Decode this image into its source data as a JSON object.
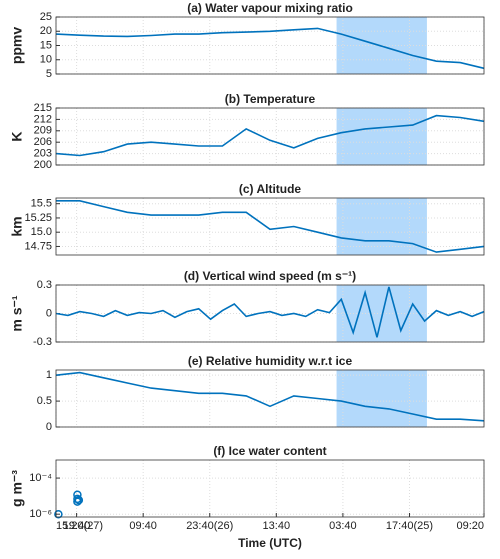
{
  "chart_data": [
    {
      "type": "line",
      "title": "(a) Water vapour mixing ratio",
      "ylabel": "ppmv",
      "color": "#0072bd",
      "grid": true,
      "ylim": [
        5,
        25
      ],
      "yticks": [
        5,
        10,
        15,
        20,
        25
      ],
      "highlight": {
        "x": [
          59,
          78
        ],
        "color": "#b3d9fb"
      },
      "x": [
        0,
        5,
        10,
        15,
        20,
        25,
        30,
        35,
        40,
        45,
        50,
        55,
        60,
        65,
        70,
        75,
        80,
        85,
        90
      ],
      "values": [
        19,
        18.6,
        18.3,
        18.2,
        18.5,
        19,
        19,
        19.5,
        19.7,
        20,
        20.5,
        21,
        19,
        16.5,
        14,
        11.5,
        9.5,
        9,
        7
      ]
    },
    {
      "type": "line",
      "title": "(b) Temperature",
      "ylabel": "K",
      "color": "#0072bd",
      "grid": true,
      "ylim": [
        200,
        215
      ],
      "yticks": [
        200,
        203,
        206,
        209,
        212,
        215
      ],
      "highlight": {
        "x": [
          59,
          78
        ],
        "color": "#b3d9fb"
      },
      "x": [
        0,
        5,
        10,
        15,
        20,
        25,
        30,
        35,
        40,
        45,
        50,
        55,
        60,
        65,
        70,
        75,
        80,
        85,
        90
      ],
      "values": [
        203,
        202.5,
        203.5,
        205.5,
        206,
        205.5,
        205,
        205,
        209.5,
        206.5,
        204.5,
        207,
        208.5,
        209.5,
        210,
        210.5,
        213,
        212.5,
        211.5
      ]
    },
    {
      "type": "line",
      "title": "(c) Altitude",
      "ylabel": "km",
      "color": "#0072bd",
      "grid": true,
      "ylim": [
        14.6,
        15.6
      ],
      "yticks": [
        14.75,
        {
          "value": 15,
          "label": "15.0"
        },
        15.25,
        15.5
      ],
      "highlight": {
        "x": [
          59,
          78
        ],
        "color": "#b3d9fb"
      },
      "x": [
        0,
        5,
        10,
        15,
        20,
        25,
        30,
        35,
        40,
        45,
        50,
        55,
        60,
        65,
        70,
        75,
        80,
        85,
        90
      ],
      "values": [
        15.55,
        15.55,
        15.45,
        15.35,
        15.3,
        15.3,
        15.3,
        15.35,
        15.35,
        15.05,
        15.1,
        15.0,
        14.9,
        14.85,
        14.85,
        14.8,
        14.65,
        14.7,
        14.75
      ]
    },
    {
      "type": "line",
      "title": "(d) Vertical wind speed (m s⁻¹)",
      "ylabel": "m s⁻¹",
      "color": "#0072bd",
      "grid": true,
      "ylim": [
        -0.3,
        0.3
      ],
      "yticks": [
        -0.3,
        0,
        0.3
      ],
      "highlight": {
        "x": [
          59,
          78
        ],
        "color": "#b3d9fb"
      },
      "x": [
        0,
        2.5,
        5,
        7.5,
        10,
        12.5,
        15,
        17.5,
        20,
        22.5,
        25,
        27.5,
        30,
        32.5,
        35,
        37.5,
        40,
        42.5,
        45,
        47.5,
        50,
        52.5,
        55,
        57.5,
        60,
        62.5,
        65,
        67.5,
        70,
        72.5,
        75,
        77.5,
        80,
        82.5,
        85,
        87.5,
        90
      ],
      "values": [
        0,
        -0.02,
        0.02,
        0,
        -0.03,
        0.03,
        -0.02,
        0.01,
        0,
        0.03,
        -0.04,
        0.02,
        0.05,
        -0.06,
        0.03,
        0.1,
        -0.03,
        0,
        0.02,
        -0.02,
        0,
        -0.03,
        0.04,
        0.01,
        0.15,
        -0.2,
        0.22,
        -0.25,
        0.28,
        -0.18,
        0.1,
        -0.08,
        0.03,
        -0.02,
        0.02,
        -0.03,
        0.02
      ]
    },
    {
      "type": "line",
      "title": "(e) Relative humidity w.r.t ice",
      "color": "#0072bd",
      "grid": true,
      "ylim": [
        0,
        1.1
      ],
      "yticks": [
        0,
        0.5,
        1
      ],
      "highlight": {
        "x": [
          59,
          78
        ],
        "color": "#b3d9fb"
      },
      "x": [
        0,
        5,
        10,
        15,
        20,
        25,
        30,
        35,
        40,
        45,
        50,
        55,
        60,
        65,
        70,
        75,
        80,
        85,
        90
      ],
      "values": [
        1.0,
        1.05,
        0.95,
        0.85,
        0.75,
        0.7,
        0.65,
        0.65,
        0.6,
        0.4,
        0.6,
        0.55,
        0.5,
        0.4,
        0.35,
        0.25,
        0.15,
        0.15,
        0.12
      ]
    },
    {
      "type": "scatter",
      "title": "(f) Ice water content",
      "ylabel": "g m⁻³",
      "color": "#0072bd",
      "grid": true,
      "log_scale": true,
      "ylim": [
        7e-07,
        0.001
      ],
      "yticks": [
        {
          "value": 1e-06,
          "label": "10⁻⁶"
        },
        {
          "value": 0.0001,
          "label": "10⁻⁴"
        }
      ],
      "x": [
        0.5,
        4.5,
        4.5,
        4.5,
        4.8
      ],
      "values": [
        1e-06,
        1.2e-05,
        7e-06,
        5e-06,
        6e-06
      ],
      "xlabel": "Time (UTC)",
      "xlim": [
        0,
        90
      ],
      "xticks": [
        {
          "value": 0,
          "label": "15:20(27)"
        },
        {
          "value": 4.33,
          "label": "19:40"
        },
        {
          "value": 18.33,
          "label": "09:40"
        },
        {
          "value": 32.33,
          "label": "23:40(26)"
        },
        {
          "value": 46.33,
          "label": "13:40"
        },
        {
          "value": 60.33,
          "label": "03:40"
        },
        {
          "value": 74.33,
          "label": "17:40(25)"
        },
        {
          "value": 90,
          "label": "09:20"
        }
      ]
    }
  ]
}
